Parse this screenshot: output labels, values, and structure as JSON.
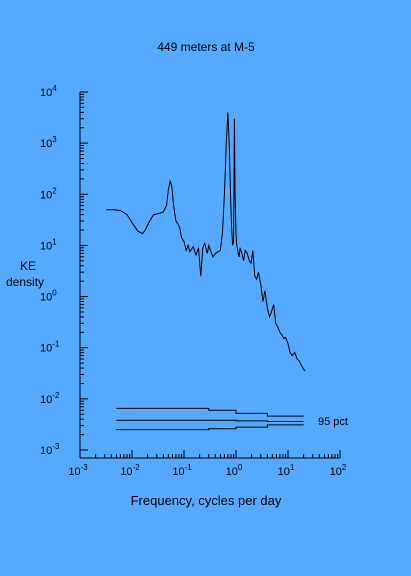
{
  "colors": {
    "background": "#55aaff",
    "foreground": "#000000"
  },
  "chart_data": {
    "type": "line",
    "title": "449 meters at M-5",
    "xlabel": "Frequency, cycles per day",
    "ylabel_line1": "KE",
    "ylabel_line2": "density",
    "x_scale": "log",
    "y_scale": "log",
    "xlim": [
      0.001,
      100
    ],
    "ylim": [
      0.001,
      10000
    ],
    "grid": false,
    "x_ticks": [
      {
        "base": "10",
        "exp": "-3",
        "value": 0.001
      },
      {
        "base": "10",
        "exp": "-2",
        "value": 0.01
      },
      {
        "base": "10",
        "exp": "-1",
        "value": 0.1
      },
      {
        "base": "10",
        "exp": "0",
        "value": 1
      },
      {
        "base": "10",
        "exp": "1",
        "value": 10
      },
      {
        "base": "10",
        "exp": "2",
        "value": 100
      }
    ],
    "y_ticks": [
      {
        "base": "10",
        "exp": "4",
        "value": 10000
      },
      {
        "base": "10",
        "exp": "3",
        "value": 1000
      },
      {
        "base": "10",
        "exp": "2",
        "value": 100
      },
      {
        "base": "10",
        "exp": "1",
        "value": 10
      },
      {
        "base": "10",
        "exp": "0",
        "value": 1
      },
      {
        "base": "10",
        "exp": "-1",
        "value": 0.1
      },
      {
        "base": "10",
        "exp": "-2",
        "value": 0.01
      },
      {
        "base": "10",
        "exp": "-3",
        "value": 0.001
      }
    ],
    "spectrum": {
      "x": [
        0.0032,
        0.0045,
        0.006,
        0.008,
        0.01,
        0.013,
        0.016,
        0.018,
        0.021,
        0.026,
        0.032,
        0.04,
        0.046,
        0.05,
        0.054,
        0.058,
        0.063,
        0.07,
        0.077,
        0.083,
        0.09,
        0.1,
        0.11,
        0.12,
        0.13,
        0.15,
        0.17,
        0.19,
        0.21,
        0.23,
        0.25,
        0.28,
        0.3,
        0.33,
        0.36,
        0.4,
        0.45,
        0.5,
        0.55,
        0.6,
        0.65,
        0.7,
        0.74,
        0.78,
        0.82,
        0.86,
        0.9,
        0.93,
        0.96,
        1.0,
        1.03,
        1.06,
        1.1,
        1.15,
        1.2,
        1.3,
        1.4,
        1.5,
        1.65,
        1.8,
        1.95,
        2.1,
        2.3,
        2.5,
        2.7,
        3.0,
        3.3,
        3.6,
        4.0,
        4.4,
        4.8,
        5.3,
        5.8,
        6.4,
        7.0,
        7.6,
        8.3,
        9.0,
        10.0,
        11.0,
        12.0,
        13.5,
        15.0,
        16.5,
        18.0,
        19.5,
        21.0
      ],
      "y": [
        50,
        50,
        48,
        40,
        28,
        19,
        17,
        20,
        28,
        40,
        42,
        45,
        60,
        120,
        180,
        150,
        60,
        30,
        26,
        22,
        14,
        12,
        8,
        10,
        7.5,
        9.5,
        6.5,
        9,
        2.5,
        9,
        11,
        7,
        10,
        7.5,
        6,
        7,
        7.5,
        8,
        18,
        110,
        1000,
        4000,
        1000,
        120,
        25,
        10,
        12,
        3000,
        100,
        18,
        10,
        9,
        7,
        6,
        9,
        7,
        5,
        8,
        7,
        5,
        4.5,
        8,
        2.5,
        2.2,
        3,
        1.7,
        0.8,
        1.3,
        0.6,
        0.4,
        0.5,
        0.7,
        0.3,
        0.25,
        0.2,
        0.18,
        0.15,
        0.16,
        0.12,
        0.08,
        0.07,
        0.08,
        0.06,
        0.055,
        0.045,
        0.04,
        0.035
      ]
    },
    "confidence_limits": {
      "label": "95 pct",
      "upper": {
        "x": [
          0.005,
          0.3,
          0.3,
          1.0,
          1.0,
          4.0,
          4.0,
          20
        ],
        "y": [
          0.0065,
          0.0065,
          0.006,
          0.006,
          0.0052,
          0.0052,
          0.0046,
          0.0046
        ]
      },
      "middle": {
        "x": [
          0.005,
          1.0,
          1.0,
          4.0,
          4.0,
          20
        ],
        "y": [
          0.0038,
          0.0038,
          0.0037,
          0.0037,
          0.0036,
          0.0036
        ]
      },
      "lower": {
        "x": [
          0.005,
          0.3,
          0.3,
          1.0,
          1.0,
          4.0,
          4.0,
          20
        ],
        "y": [
          0.0025,
          0.0025,
          0.0026,
          0.0026,
          0.0028,
          0.0028,
          0.0031,
          0.0031
        ]
      }
    }
  }
}
